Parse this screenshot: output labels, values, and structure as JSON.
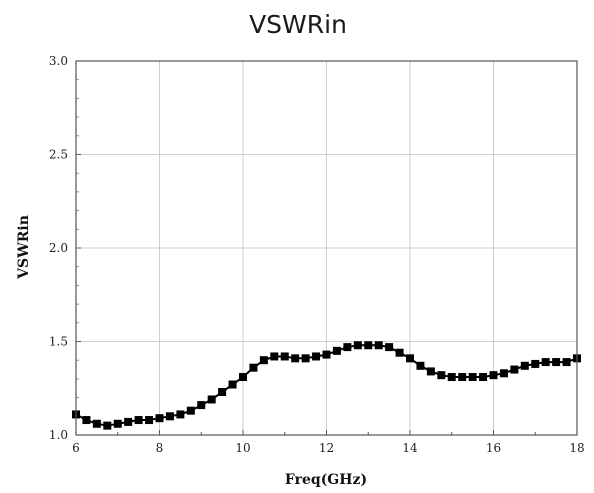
{
  "chart_data": {
    "type": "line",
    "title": "VSWRin",
    "xlabel": "Freq(GHz)",
    "ylabel": "VSWRin",
    "xlim": [
      6,
      18
    ],
    "ylim": [
      1.0,
      3.0
    ],
    "xticks": [
      "6",
      "8",
      "10",
      "12",
      "14",
      "16",
      "18"
    ],
    "yticks": [
      "1.0",
      "1.5",
      "2.0",
      "2.5",
      "3.0"
    ],
    "grid": true,
    "legend": "none",
    "series": [
      {
        "color": "#000000",
        "marker": "square",
        "x": [
          6.0,
          6.25,
          6.5,
          6.75,
          7.0,
          7.25,
          7.5,
          7.75,
          8.0,
          8.25,
          8.5,
          8.75,
          9.0,
          9.25,
          9.5,
          9.75,
          10.0,
          10.25,
          10.5,
          10.75,
          11.0,
          11.25,
          11.5,
          11.75,
          12.0,
          12.25,
          12.5,
          12.75,
          13.0,
          13.25,
          13.5,
          13.75,
          14.0,
          14.25,
          14.5,
          14.75,
          15.0,
          15.25,
          15.5,
          15.75,
          16.0,
          16.25,
          16.5,
          16.75,
          17.0,
          17.25,
          17.5,
          17.75,
          18.0
        ],
        "y": [
          1.11,
          1.08,
          1.06,
          1.05,
          1.06,
          1.07,
          1.08,
          1.08,
          1.09,
          1.1,
          1.11,
          1.13,
          1.16,
          1.19,
          1.23,
          1.27,
          1.31,
          1.36,
          1.4,
          1.42,
          1.42,
          1.41,
          1.41,
          1.42,
          1.43,
          1.45,
          1.47,
          1.48,
          1.48,
          1.48,
          1.47,
          1.44,
          1.41,
          1.37,
          1.34,
          1.32,
          1.31,
          1.31,
          1.31,
          1.31,
          1.32,
          1.33,
          1.35,
          1.37,
          1.38,
          1.39,
          1.39,
          1.39,
          1.41
        ]
      }
    ]
  }
}
